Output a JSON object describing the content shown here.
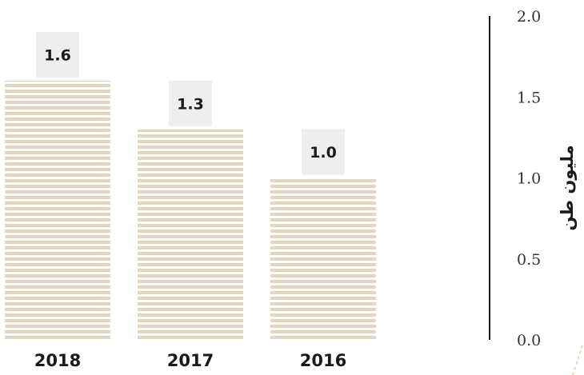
{
  "chart_data": {
    "type": "bar",
    "categories": [
      "2018",
      "2017",
      "2016"
    ],
    "values": [
      1.6,
      1.3,
      1.0
    ],
    "value_labels": [
      "1.6",
      "1.3",
      "1.0"
    ],
    "title": "",
    "xlabel": "",
    "ylabel": "مليون طن",
    "ylim": [
      0,
      2.0
    ],
    "yticks": [
      0,
      0.5,
      1.0,
      1.5,
      2.0
    ],
    "ytick_labels": [
      "0.0",
      "0.5",
      "1.0",
      "1.5",
      "2.0"
    ],
    "yaxis_side": "right",
    "grid": false,
    "legend": "none",
    "bar_fill": "striped",
    "colors": {
      "bar": "#e1d6c0",
      "value_box": "#eeeeee",
      "axis": "#1a1a1a"
    }
  }
}
